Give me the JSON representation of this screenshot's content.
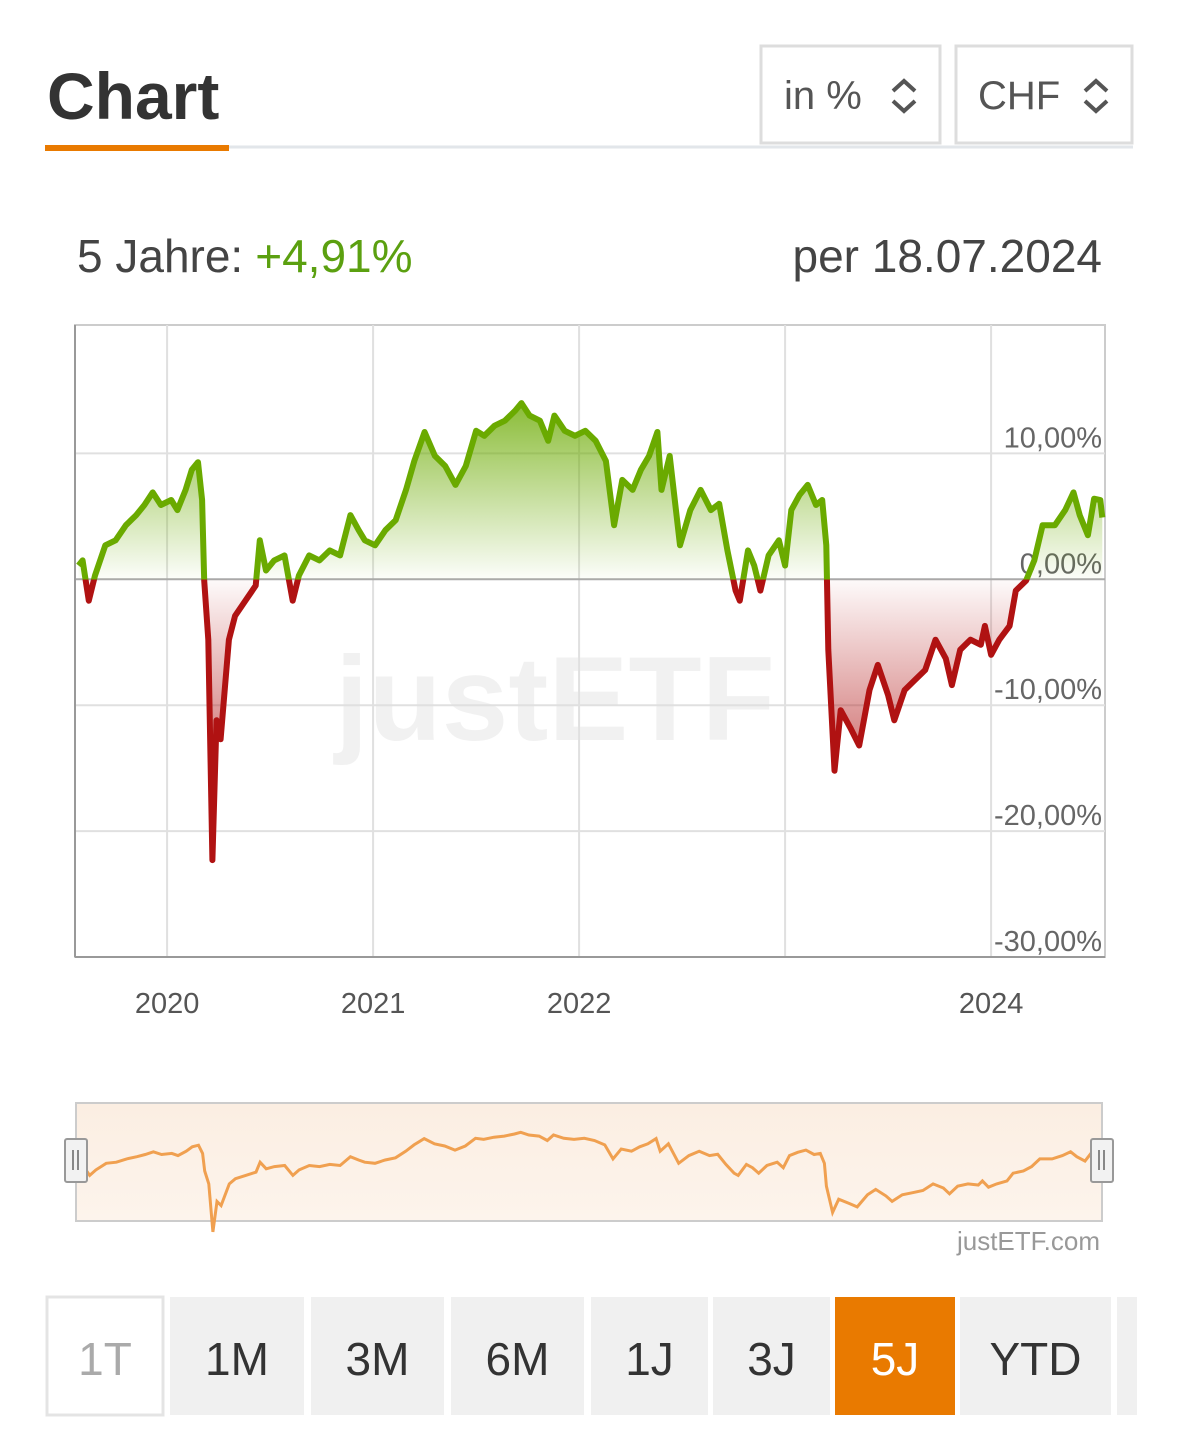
{
  "header": {
    "title": "Chart"
  },
  "selects": [
    {
      "label": "in %"
    },
    {
      "label": "CHF"
    }
  ],
  "summary": {
    "period": "5 Jahre:",
    "change": "+4,91%",
    "date": "per 18.07.2024"
  },
  "chart_data": {
    "type": "line",
    "watermark": "justETF",
    "credit": "justETF.com",
    "xlim": [
      2019.553,
      2024.553
    ],
    "xticks": [
      2020,
      2021,
      2022,
      {
        "value": 2023,
        "label": null
      },
      2024
    ],
    "ylim": [
      -30,
      20.2
    ],
    "yticks": [
      {
        "value": -30,
        "label": "-30,00%"
      },
      {
        "value": -20,
        "label": "-20,00%"
      },
      {
        "value": -10,
        "label": "-10,00%"
      },
      {
        "value": 0,
        "label": "0,00%"
      },
      {
        "value": 10,
        "label": "10,00%"
      }
    ],
    "grid": true,
    "navigator_color": "#f0a050",
    "x": [
      2019.57,
      2019.59,
      2019.62,
      2019.65,
      2019.7,
      2019.75,
      2019.8,
      2019.85,
      2019.89,
      2019.93,
      2019.97,
      2020.02,
      2020.05,
      2020.09,
      2020.12,
      2020.15,
      2020.17,
      2020.18,
      2020.2,
      2020.22,
      2020.24,
      2020.26,
      2020.3,
      2020.33,
      2020.38,
      2020.43,
      2020.45,
      2020.48,
      2020.52,
      2020.57,
      2020.61,
      2020.64,
      2020.69,
      2020.74,
      2020.79,
      2020.84,
      2020.89,
      2020.93,
      2020.96,
      2021.01,
      2021.06,
      2021.11,
      2021.16,
      2021.2,
      2021.25,
      2021.3,
      2021.35,
      2021.4,
      2021.45,
      2021.5,
      2021.54,
      2021.59,
      2021.64,
      2021.69,
      2021.72,
      2021.76,
      2021.81,
      2021.85,
      2021.88,
      2021.93,
      2021.98,
      2022.03,
      2022.08,
      2022.13,
      2022.17,
      2022.21,
      2022.26,
      2022.3,
      2022.34,
      2022.38,
      2022.4,
      2022.44,
      2022.49,
      2022.54,
      2022.59,
      2022.64,
      2022.68,
      2022.72,
      2022.76,
      2022.78,
      2022.82,
      2022.85,
      2022.88,
      2022.92,
      2022.97,
      2023.0,
      2023.03,
      2023.07,
      2023.11,
      2023.15,
      2023.18,
      2023.2,
      2023.21,
      2023.24,
      2023.27,
      2023.32,
      2023.36,
      2023.41,
      2023.45,
      2023.5,
      2023.53,
      2023.58,
      2023.63,
      2023.68,
      2023.73,
      2023.78,
      2023.81,
      2023.85,
      2023.9,
      2023.95,
      2023.97,
      2024.0,
      2024.04,
      2024.09,
      2024.12,
      2024.17,
      2024.21,
      2024.25,
      2024.31,
      2024.36,
      2024.4,
      2024.43,
      2024.47,
      2024.5,
      2024.53,
      2024.54
    ],
    "series": [
      {
        "color": "#6aaa00",
        "negative_color": "#b01212",
        "values": [
          1.1,
          1.5,
          -1.7,
          0.3,
          2.7,
          3.1,
          4.3,
          5.1,
          5.9,
          6.9,
          5.9,
          6.3,
          5.5,
          7.1,
          8.7,
          9.3,
          6.3,
          -0.1,
          -4.8,
          -22.3,
          -11.2,
          -12.7,
          -4.8,
          -2.9,
          -1.7,
          -0.5,
          3.1,
          0.7,
          1.5,
          1.9,
          -1.7,
          0.3,
          1.9,
          1.5,
          2.3,
          1.9,
          5.1,
          3.9,
          3.1,
          2.7,
          3.9,
          4.7,
          7.1,
          9.4,
          11.7,
          9.8,
          9.0,
          7.5,
          9.0,
          11.8,
          11.4,
          12.2,
          12.6,
          13.4,
          14.0,
          13.0,
          12.6,
          11.0,
          13.0,
          11.8,
          11.4,
          11.8,
          11.0,
          9.4,
          4.3,
          7.9,
          7.1,
          8.7,
          9.8,
          11.7,
          7.1,
          9.8,
          2.7,
          5.5,
          7.1,
          5.5,
          6.0,
          2.3,
          -0.9,
          -1.7,
          2.3,
          1.1,
          -0.9,
          1.9,
          3.1,
          1.1,
          5.5,
          6.7,
          7.5,
          5.9,
          6.3,
          2.7,
          -5.6,
          -15.2,
          -10.4,
          -11.9,
          -13.2,
          -8.8,
          -6.8,
          -9.2,
          -11.2,
          -8.8,
          -8.0,
          -7.2,
          -4.8,
          -6.3,
          -8.4,
          -5.6,
          -4.8,
          -5.2,
          -3.7,
          -6.0,
          -4.8,
          -3.7,
          -0.9,
          -0.1,
          1.5,
          4.3,
          4.3,
          5.5,
          6.9,
          5.1,
          3.5,
          6.4,
          6.3,
          4.91
        ]
      }
    ]
  },
  "periods": {
    "active": 6,
    "disabled": [
      0
    ],
    "buttons": [
      "1T",
      "1M",
      "3M",
      "6M",
      "1J",
      "3J",
      "5J",
      "YTD"
    ]
  }
}
